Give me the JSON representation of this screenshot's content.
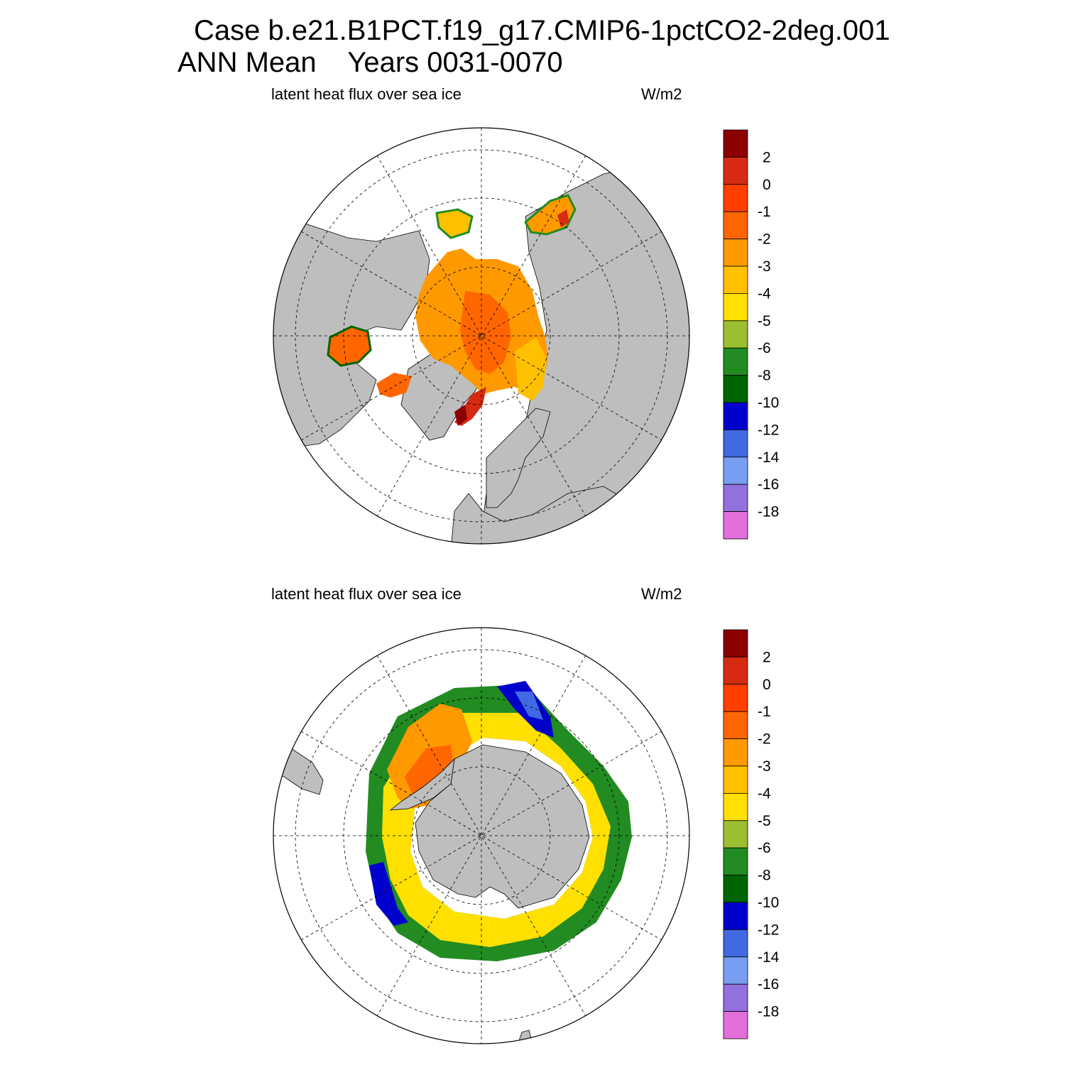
{
  "header": {
    "line1": "Case b.e21.B1PCT.f19_g17.CMIP6-1pctCO2-2deg.001",
    "line2_left": "ANN Mean",
    "line2_right": "Years 0031-0070"
  },
  "colorbar": {
    "labels": [
      "2",
      "0",
      "-1",
      "-2",
      "-3",
      "-4",
      "-5",
      "-6",
      "-8",
      "-10",
      "-12",
      "-14",
      "-16",
      "-18"
    ],
    "colors": [
      "#8b0000",
      "#d62b12",
      "#ff3f00",
      "#ff6600",
      "#ff9900",
      "#ffc000",
      "#ffe000",
      "#9cbf31",
      "#228b22",
      "#006400",
      "#0000cd",
      "#4169e1",
      "#779ef0",
      "#9370db",
      "#e36fdb"
    ]
  },
  "panels": [
    {
      "id": "north",
      "hemisphere": "NH",
      "left_title": "latent heat flux over sea ice",
      "right_title": "W/m2"
    },
    {
      "id": "south",
      "hemisphere": "SH",
      "left_title": "latent heat flux over sea ice",
      "right_title": "W/m2"
    }
  ]
}
